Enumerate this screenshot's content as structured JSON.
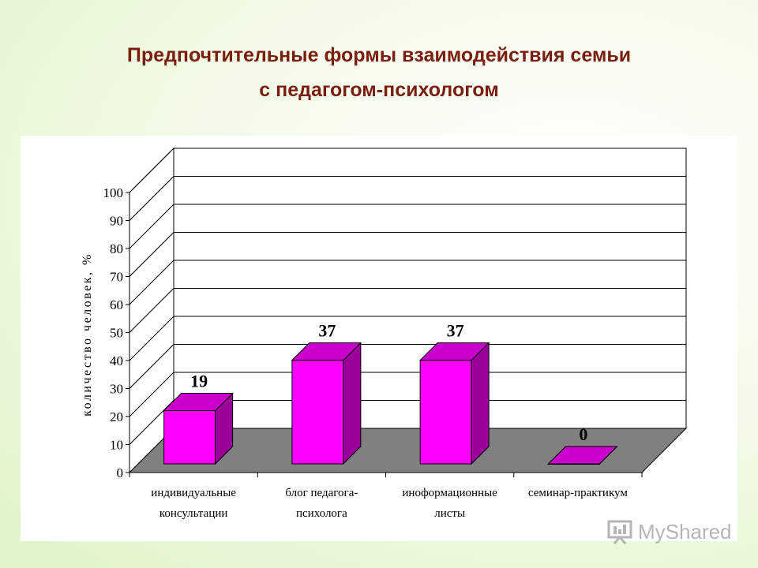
{
  "title": {
    "line1": "Предпочтительные формы  взаимодействия семьи",
    "line2": "с  педагогом-психологом"
  },
  "chart_data": {
    "type": "bar",
    "title": "",
    "xlabel": "",
    "ylabel": "количество человек, %",
    "ylim": [
      0,
      100
    ],
    "yticks": [
      0,
      10,
      20,
      30,
      40,
      50,
      60,
      70,
      80,
      90,
      100
    ],
    "categories": [
      [
        "индивидуальные",
        "консультации"
      ],
      [
        "блог педагога-",
        "психолога"
      ],
      [
        "иноформационные",
        "листы"
      ],
      [
        "семинар-практикум"
      ]
    ],
    "values": [
      19,
      37,
      37,
      0
    ],
    "data_labels": [
      "19",
      "37",
      "37",
      "0"
    ],
    "grid": true,
    "bar_color": "#ff00ff",
    "floor_color": "#808080"
  },
  "watermark": {
    "text": "MyShared",
    "icon": "presentation-icon"
  }
}
